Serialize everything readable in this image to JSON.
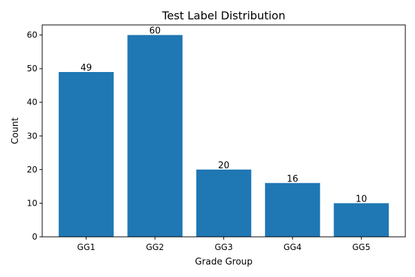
{
  "chart_data": {
    "type": "bar",
    "title": "Test Label Distribution",
    "xlabel": "Grade Group",
    "ylabel": "Count",
    "categories": [
      "GG1",
      "GG2",
      "GG3",
      "GG4",
      "GG5"
    ],
    "values": [
      49,
      60,
      20,
      16,
      10
    ],
    "data_labels": [
      "49",
      "60",
      "20",
      "16",
      "10"
    ],
    "ylim": [
      0,
      63
    ],
    "yticks": [
      0,
      10,
      20,
      30,
      40,
      50,
      60
    ],
    "ytick_labels": [
      "0",
      "10",
      "20",
      "30",
      "40",
      "50",
      "60"
    ],
    "bar_color": "#1f77b4",
    "grid": false,
    "legend": "none"
  }
}
